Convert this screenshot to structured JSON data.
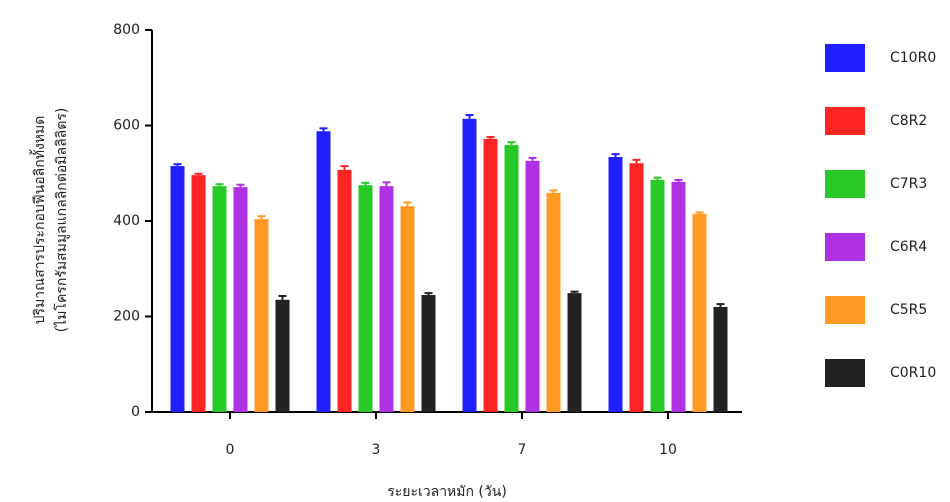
{
  "chart_data": {
    "type": "bar",
    "y_label": [
      "ปริมาณสารประกอบฟีนอลิกทั้งหมด",
      "(ไมโครกรัมสมมูลแกลลิกต่อมิลลิลิตร)"
    ],
    "x_label": "ระยะเวลาหมัก (วัน)",
    "categories": [
      "0",
      "3",
      "7",
      "10"
    ],
    "series": [
      {
        "name": "C10R0",
        "color": "#1f1fff",
        "values": [
          515,
          588,
          614,
          534
        ],
        "errors": [
          4,
          6,
          8,
          6
        ]
      },
      {
        "name": "C8R2",
        "color": "#ff2424",
        "values": [
          496,
          507,
          572,
          521
        ],
        "errors": [
          3,
          8,
          4,
          7
        ]
      },
      {
        "name": "C7R3",
        "color": "#27c927",
        "values": [
          473,
          475,
          559,
          486
        ],
        "errors": [
          4,
          5,
          6,
          5
        ]
      },
      {
        "name": "C6R4",
        "color": "#b030e3",
        "values": [
          471,
          473,
          526,
          482
        ],
        "errors": [
          5,
          8,
          6,
          4
        ]
      },
      {
        "name": "C5R5",
        "color": "#ff9a24",
        "values": [
          404,
          431,
          459,
          415
        ],
        "errors": [
          6,
          8,
          5,
          3
        ]
      },
      {
        "name": "C0R10",
        "color": "#222222",
        "values": [
          235,
          245,
          249,
          220
        ],
        "errors": [
          8,
          4,
          3,
          6
        ]
      }
    ],
    "ylim": [
      0,
      800
    ],
    "yticks": [
      0,
      200,
      400,
      600,
      800
    ]
  }
}
